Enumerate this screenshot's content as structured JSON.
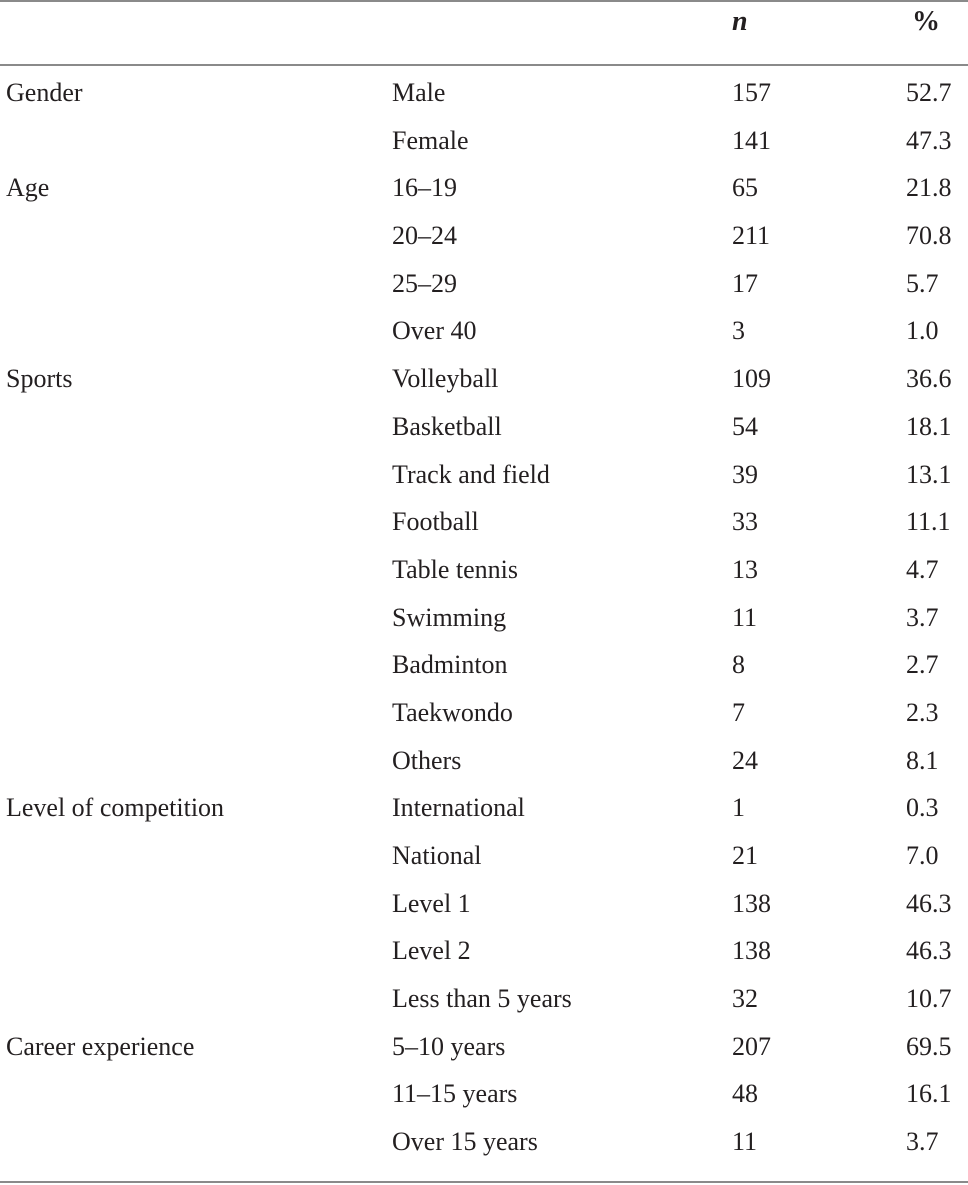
{
  "table": {
    "header": {
      "col_n": "n",
      "col_pct": "%"
    },
    "rows": [
      {
        "group": "Gender",
        "sub": "Male",
        "n": "157",
        "pct": "52.7"
      },
      {
        "group": "",
        "sub": "Female",
        "n": "141",
        "pct": "47.3"
      },
      {
        "group": "Age",
        "sub": "16–19",
        "n": "65",
        "pct": "21.8"
      },
      {
        "group": "",
        "sub": "20–24",
        "n": "211",
        "pct": "70.8"
      },
      {
        "group": "",
        "sub": "25–29",
        "n": "17",
        "pct": "5.7"
      },
      {
        "group": "",
        "sub": "Over 40",
        "n": "3",
        "pct": "1.0"
      },
      {
        "group": "Sports",
        "sub": "Volleyball",
        "n": "109",
        "pct": "36.6"
      },
      {
        "group": "",
        "sub": "Basketball",
        "n": "54",
        "pct": "18.1"
      },
      {
        "group": "",
        "sub": "Track and field",
        "n": "39",
        "pct": "13.1"
      },
      {
        "group": "",
        "sub": "Football",
        "n": "33",
        "pct": "11.1"
      },
      {
        "group": "",
        "sub": "Table tennis",
        "n": "13",
        "pct": "4.7"
      },
      {
        "group": "",
        "sub": "Swimming",
        "n": "11",
        "pct": "3.7"
      },
      {
        "group": "",
        "sub": "Badminton",
        "n": "8",
        "pct": "2.7"
      },
      {
        "group": "",
        "sub": "Taekwondo",
        "n": "7",
        "pct": "2.3"
      },
      {
        "group": "",
        "sub": "Others",
        "n": "24",
        "pct": "8.1"
      },
      {
        "group": "Level of competition",
        "sub": "International",
        "n": "1",
        "pct": "0.3"
      },
      {
        "group": "",
        "sub": "National",
        "n": "21",
        "pct": "7.0"
      },
      {
        "group": "",
        "sub": "Level 1",
        "n": "138",
        "pct": "46.3"
      },
      {
        "group": "",
        "sub": "Level 2",
        "n": "138",
        "pct": "46.3"
      },
      {
        "group": "",
        "sub": "Less than 5 years",
        "n": "32",
        "pct": "10.7"
      },
      {
        "group": "Career experience",
        "sub": "5–10 years",
        "n": "207",
        "pct": "69.5"
      },
      {
        "group": "",
        "sub": "11–15 years",
        "n": "48",
        "pct": "16.1"
      },
      {
        "group": "",
        "sub": "Over 15 years",
        "n": "11",
        "pct": "3.7"
      }
    ]
  }
}
